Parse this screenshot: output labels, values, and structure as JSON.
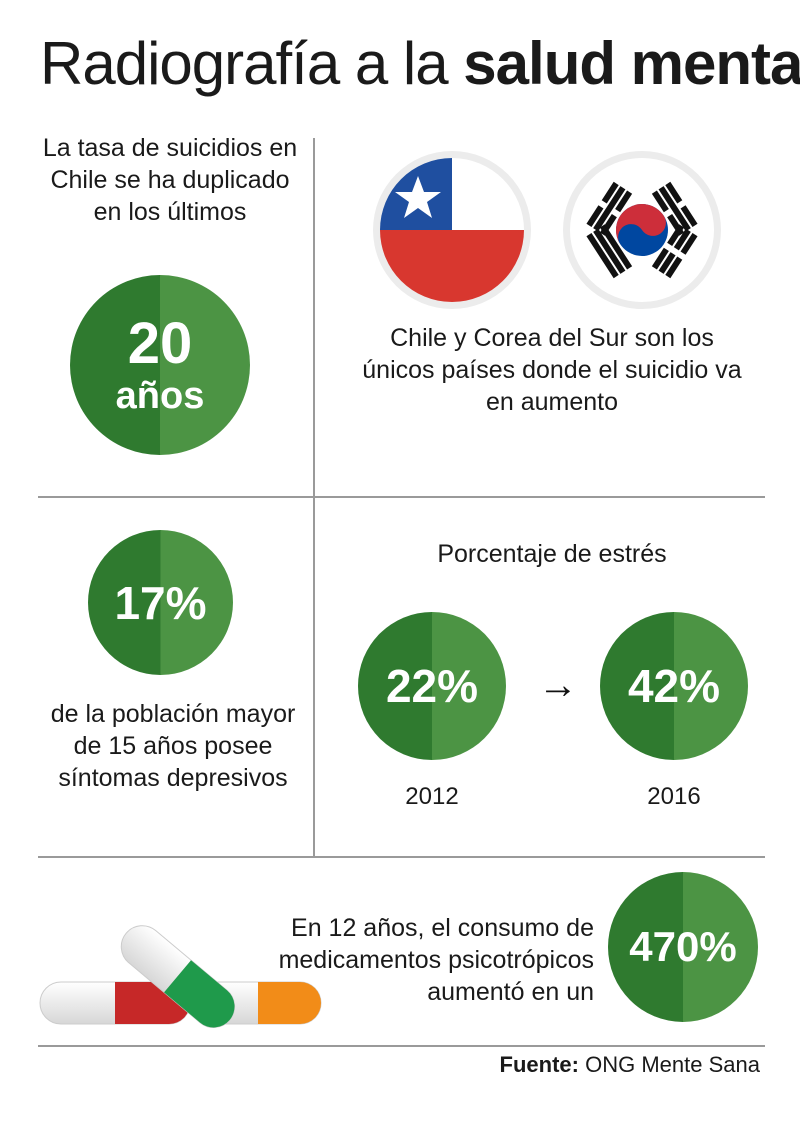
{
  "header": {
    "title_light": "Radiografía a la",
    "title_bold": "salud mental"
  },
  "suicide_rate": {
    "intro": "La tasa de suicidios en Chile se ha duplicado en los últimos",
    "number": "20",
    "unit": "años"
  },
  "countries": {
    "flags": [
      "chile-flag-icon",
      "south-korea-flag-icon"
    ],
    "caption": "Chile y Corea del Sur son los únicos países donde el suicidio va en aumento"
  },
  "depression": {
    "value": "17%",
    "caption": "de la población mayor de 15 años posee síntomas depresivos"
  },
  "stress": {
    "title": "Porcentaje de estrés",
    "from_value": "22%",
    "from_year": "2012",
    "arrow": "→",
    "to_value": "42%",
    "to_year": "2016"
  },
  "medication": {
    "caption": "En 12 años, el consumo de medicamentos psicotrópicos aumentó en un",
    "value": "470%",
    "icons": [
      "pill-red-icon",
      "pill-green-icon",
      "pill-orange-icon"
    ]
  },
  "source": {
    "label": "Fuente:",
    "name": "ONG Mente Sana"
  },
  "colors": {
    "circle_dark": "#2f7a2f",
    "circle_light": "#4c9444",
    "chile_red": "#d8372f",
    "chile_blue": "#1f4fa0",
    "korea_red": "#cd2e3a",
    "korea_blue": "#0047a0"
  }
}
